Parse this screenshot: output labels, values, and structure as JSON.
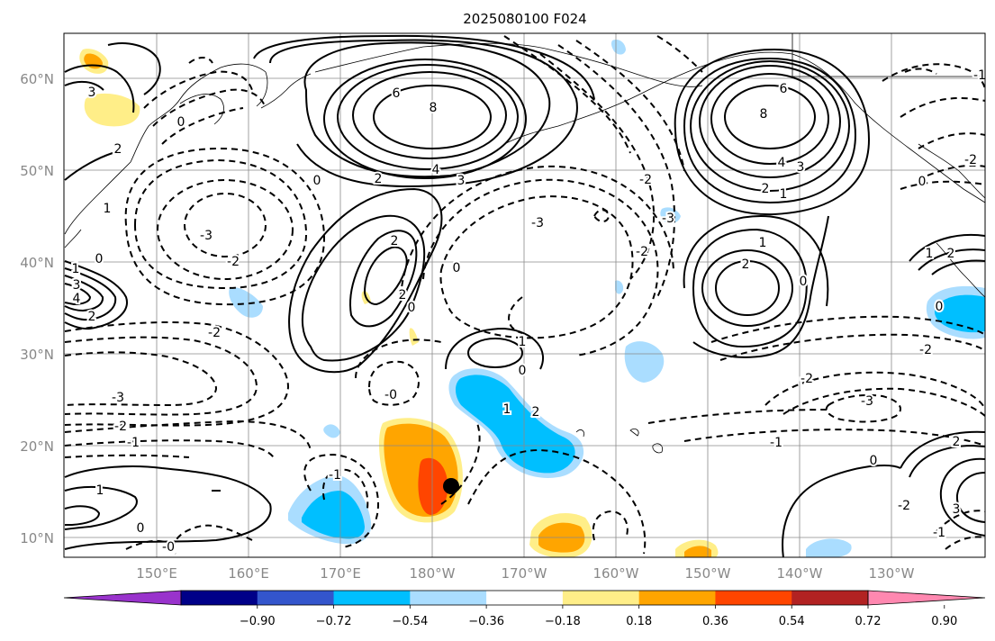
{
  "title": "2025080100 F024",
  "lat_labels": [
    "60°N",
    "50°N",
    "40°N",
    "30°N",
    "20°N",
    "10°N"
  ],
  "lon_labels": [
    "150°E",
    "160°E",
    "170°E",
    "180°W",
    "170°W",
    "160°W",
    "150°W",
    "140°W",
    "130°W"
  ],
  "colorbar": {
    "ticks": [
      "−0.90",
      "−0.72",
      "−0.54",
      "−0.36",
      "−0.18",
      "0.18",
      "0.36",
      "0.54",
      "0.72",
      "0.90"
    ],
    "colors": [
      "#9933cc",
      "#000088",
      "#3355cc",
      "#00bfff",
      "#aaddff",
      "#ffffff",
      "#ffee88",
      "#ffa500",
      "#ff4500",
      "#b22222",
      "#ff88b0"
    ]
  },
  "contour_labels": [
    {
      "text": "8",
      "name": "label-8-west"
    },
    {
      "text": "6",
      "name": "label-6-west"
    },
    {
      "text": "4",
      "name": "label-4-west"
    },
    {
      "text": "3",
      "name": "label-3-west"
    },
    {
      "text": "2",
      "name": "label-2-west"
    },
    {
      "text": "8",
      "name": "label-8-east"
    },
    {
      "text": "6",
      "name": "label-6-east"
    },
    {
      "text": "4",
      "name": "label-4-east"
    },
    {
      "text": "3",
      "name": "label-3-east"
    },
    {
      "text": "2",
      "name": "label-2-east"
    },
    {
      "text": "1",
      "name": "label-1-east"
    },
    {
      "text": "2",
      "name": "label-2-central"
    },
    {
      "text": "2",
      "name": "label-2-central-low"
    },
    {
      "text": "0",
      "name": "label-0-central"
    },
    {
      "text": "0",
      "name": "label-0-nw"
    },
    {
      "text": "-3",
      "name": "label-m3-west"
    },
    {
      "text": "-2",
      "name": "label-m2-west"
    },
    {
      "text": "-2",
      "name": "label-m2-sw"
    },
    {
      "text": "-3",
      "name": "label-m3-sw"
    },
    {
      "text": "-2",
      "name": "label-m2-sw2"
    },
    {
      "text": "-1",
      "name": "label-m1-sw"
    },
    {
      "text": "1",
      "name": "label-1-south"
    },
    {
      "text": "0",
      "name": "label-0-south"
    },
    {
      "text": "-1",
      "name": "label-m1-south"
    },
    {
      "text": "-0",
      "name": "label-m0-south"
    },
    {
      "text": "1",
      "name": "label-1-mid"
    },
    {
      "text": "0",
      "name": "label-0-mid"
    },
    {
      "text": "1",
      "name": "label-1-mid2"
    },
    {
      "text": "2",
      "name": "label-2-mid"
    },
    {
      "text": "-0",
      "name": "label-m0-mid"
    },
    {
      "text": "-3",
      "name": "label-m3-central"
    },
    {
      "text": "-2",
      "name": "label-m2-central"
    },
    {
      "text": "0",
      "name": "label-0-central2"
    },
    {
      "text": "1",
      "name": "label-1-east2"
    },
    {
      "text": "2",
      "name": "label-2-east2"
    },
    {
      "text": "0",
      "name": "label-0-east2"
    },
    {
      "text": "-2",
      "name": "label-m2-east"
    },
    {
      "text": "-3",
      "name": "label-m3-east"
    },
    {
      "text": "-2",
      "name": "label-m2-east2"
    },
    {
      "text": "-1",
      "name": "label-m1-east"
    },
    {
      "text": "0",
      "name": "label-0-se"
    },
    {
      "text": "2",
      "name": "label-2-se"
    },
    {
      "text": "3",
      "name": "label-3-se"
    },
    {
      "text": "-2",
      "name": "label-m2-se"
    },
    {
      "text": "-1",
      "name": "label-m1-se"
    },
    {
      "text": "1",
      "name": "label-1-ne"
    },
    {
      "text": "2",
      "name": "label-2-ne"
    },
    {
      "text": "0",
      "name": "label-0-ne"
    },
    {
      "text": "-2",
      "name": "label-m2-ne"
    },
    {
      "text": "-3",
      "name": "label-m3-ne"
    },
    {
      "text": "-2",
      "name": "label-m2-ne2"
    },
    {
      "text": "0",
      "name": "label-0-ne2"
    },
    {
      "text": "-1",
      "name": "label-m1-ne"
    },
    {
      "text": "1",
      "name": "label-1-nw"
    },
    {
      "text": "2",
      "name": "label-2-nw"
    },
    {
      "text": "3",
      "name": "label-3-nw"
    },
    {
      "text": "0",
      "name": "label-0-nw2"
    },
    {
      "text": "4",
      "name": "label-4-w"
    },
    {
      "text": "3",
      "name": "label-3-w"
    },
    {
      "text": "2",
      "name": "label-2-w"
    },
    {
      "text": "1",
      "name": "label-1-w"
    },
    {
      "text": "0",
      "name": "label-0-w"
    }
  ]
}
